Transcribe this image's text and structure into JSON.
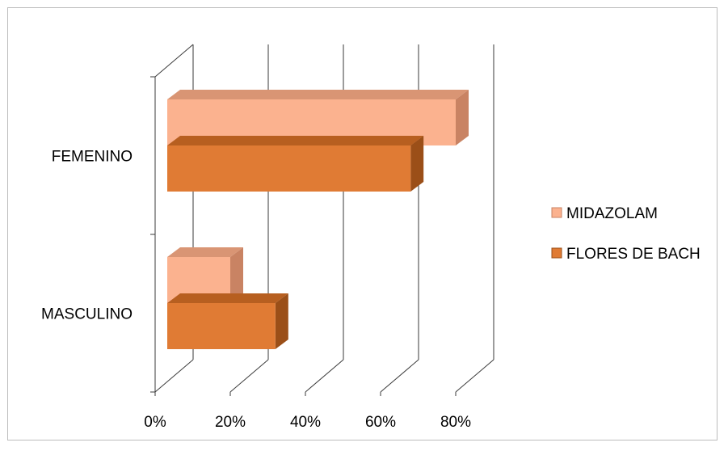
{
  "colors": {
    "midazolam_front": "#fbb28f",
    "midazolam_top": "#d99574",
    "midazolam_side": "#c98363",
    "flores_front": "#e07b34",
    "flores_top": "#b75f20",
    "flores_side": "#9b4f18",
    "grid": "#3a3a3a"
  },
  "chart_data": {
    "type": "bar",
    "orientation": "horizontal",
    "style": "3d-clustered",
    "categories": [
      "FEMENINO",
      "MASCULINO"
    ],
    "series": [
      {
        "name": "MIDAZOLAM",
        "values": [
          80,
          20
        ]
      },
      {
        "name": "FLORES DE BACH",
        "values": [
          68,
          32
        ]
      }
    ],
    "xlim": [
      0,
      80
    ],
    "x_ticks": [
      "0%",
      "20%",
      "40%",
      "60%",
      "80%"
    ],
    "grid": true,
    "legend_position": "right"
  }
}
